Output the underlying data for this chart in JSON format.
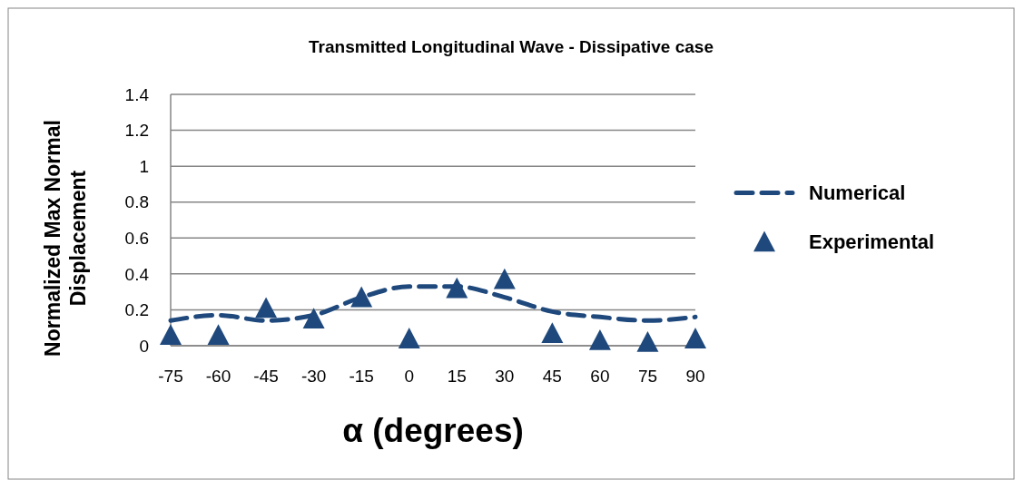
{
  "chart_data": {
    "type": "line",
    "title": "Transmitted Longitudinal Wave - Dissipative case",
    "xlabel": "α (degrees)",
    "ylabel": "Normalized Max Normal Displacement",
    "categories": [
      "-75",
      "-60",
      "-45",
      "-30",
      "-15",
      "0",
      "15",
      "30",
      "45",
      "60",
      "75",
      "90"
    ],
    "series": [
      {
        "name": "Numerical",
        "color": "#1f497d",
        "line_style": "dashed",
        "marker": "none",
        "values": [
          0.14,
          0.17,
          0.14,
          0.17,
          0.27,
          0.33,
          0.33,
          0.27,
          0.19,
          0.16,
          0.14,
          0.16
        ]
      },
      {
        "name": "Experimental",
        "type": "scatter",
        "color": "#1f497d",
        "marker": "triangle",
        "values": [
          0.06,
          0.06,
          0.21,
          0.15,
          0.27,
          0.04,
          0.32,
          0.37,
          0.07,
          0.03,
          0.02,
          0.04
        ]
      }
    ],
    "ylim": [
      0,
      1.4
    ],
    "yticks": [
      0,
      0.2,
      0.4,
      0.6,
      0.8,
      1,
      1.2,
      1.4
    ],
    "grid": "y",
    "legend": "right"
  }
}
